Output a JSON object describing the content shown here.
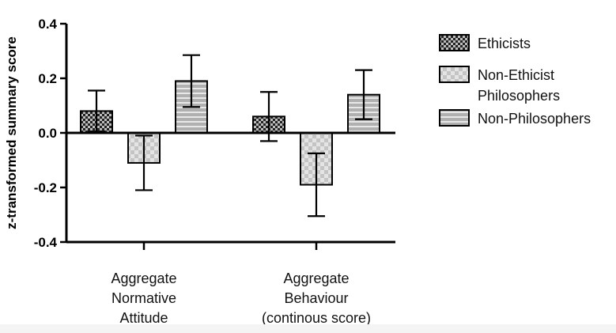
{
  "chart_data": {
    "type": "bar",
    "title": "",
    "xlabel": "",
    "ylabel": "z-transformed summary score",
    "ylim": [
      -0.4,
      0.4
    ],
    "yticks": [
      "-0.4",
      "-0.2",
      "0.0",
      "0.2",
      "0.4"
    ],
    "ytick_values": [
      -0.4,
      -0.2,
      0.0,
      0.2,
      0.4
    ],
    "categories": [
      [
        "Aggregate",
        "Normative",
        "Attitude"
      ],
      [
        "Aggregate",
        "Behaviour",
        "(continous score)"
      ]
    ],
    "series": [
      {
        "name": "Ethicists",
        "pattern": "checker-dark",
        "values": [
          0.08,
          0.06
        ],
        "error": [
          0.075,
          0.09
        ]
      },
      {
        "name": "Non-Ethicist Philosophers",
        "pattern": "checker-light",
        "values": [
          -0.11,
          -0.19
        ],
        "error": [
          0.1,
          0.115
        ]
      },
      {
        "name": "Non-Philosophers",
        "pattern": "stripes",
        "values": [
          0.19,
          0.14
        ],
        "error": [
          0.095,
          0.09
        ]
      }
    ],
    "legend": {
      "placement": "right",
      "entries": [
        [
          "Ethicists"
        ],
        [
          "Non-Ethicist",
          "Philosophers"
        ],
        [
          "Non-Philosophers"
        ]
      ]
    },
    "grid": false
  },
  "colors": {
    "checker_dark_bg": "#222222",
    "checker_dark_fg": "#bdbdbd",
    "checker_light_bg": "#c4c4c4",
    "checker_light_fg": "#e4e4e4",
    "stripe_bg": "#b0b0b0",
    "stripe_fg": "#e8e8e8",
    "ink": "#000000"
  }
}
